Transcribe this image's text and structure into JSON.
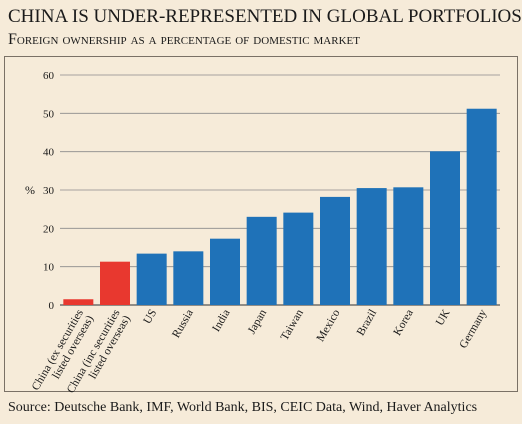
{
  "title": "CHINA IS UNDER-REPRESENTED IN GLOBAL PORTFOLIOS",
  "subtitle": "Foreign ownership as a percentage of domestic market",
  "source": "Source: Deutsche Bank, IMF, World Bank, BIS, CEIC Data, Wind, Haver Analytics",
  "colors": {
    "highlight": "#e8382f",
    "default": "#1f72b8",
    "grid": "#8a8a8a",
    "background": "#f6ebd9"
  },
  "chart_data": {
    "type": "bar",
    "ylabel": "%",
    "ylim": [
      0,
      60
    ],
    "yticks": [
      0,
      10,
      20,
      30,
      40,
      50,
      60
    ],
    "grid": true,
    "categories": [
      "China (ex securities listed overseas)",
      "China (inc securities listed overseas)",
      "US",
      "Russia",
      "India",
      "Japan",
      "Taiwan",
      "Mexico",
      "Brazil",
      "Korea",
      "UK",
      "Germany"
    ],
    "category_lines": [
      [
        "China (ex securities",
        "listed overseas)"
      ],
      [
        "China (inc securities",
        "listed overseas)"
      ],
      [
        "US"
      ],
      [
        "Russia"
      ],
      [
        "India"
      ],
      [
        "Japan"
      ],
      [
        "Taiwan"
      ],
      [
        "Mexico"
      ],
      [
        "Brazil"
      ],
      [
        "Korea"
      ],
      [
        "UK"
      ],
      [
        "Germany"
      ]
    ],
    "values": [
      1.5,
      11.3,
      13.4,
      14.0,
      17.3,
      23.0,
      24.1,
      28.2,
      30.5,
      30.7,
      40.1,
      51.2
    ],
    "highlight": [
      true,
      true,
      false,
      false,
      false,
      false,
      false,
      false,
      false,
      false,
      false,
      false
    ]
  }
}
